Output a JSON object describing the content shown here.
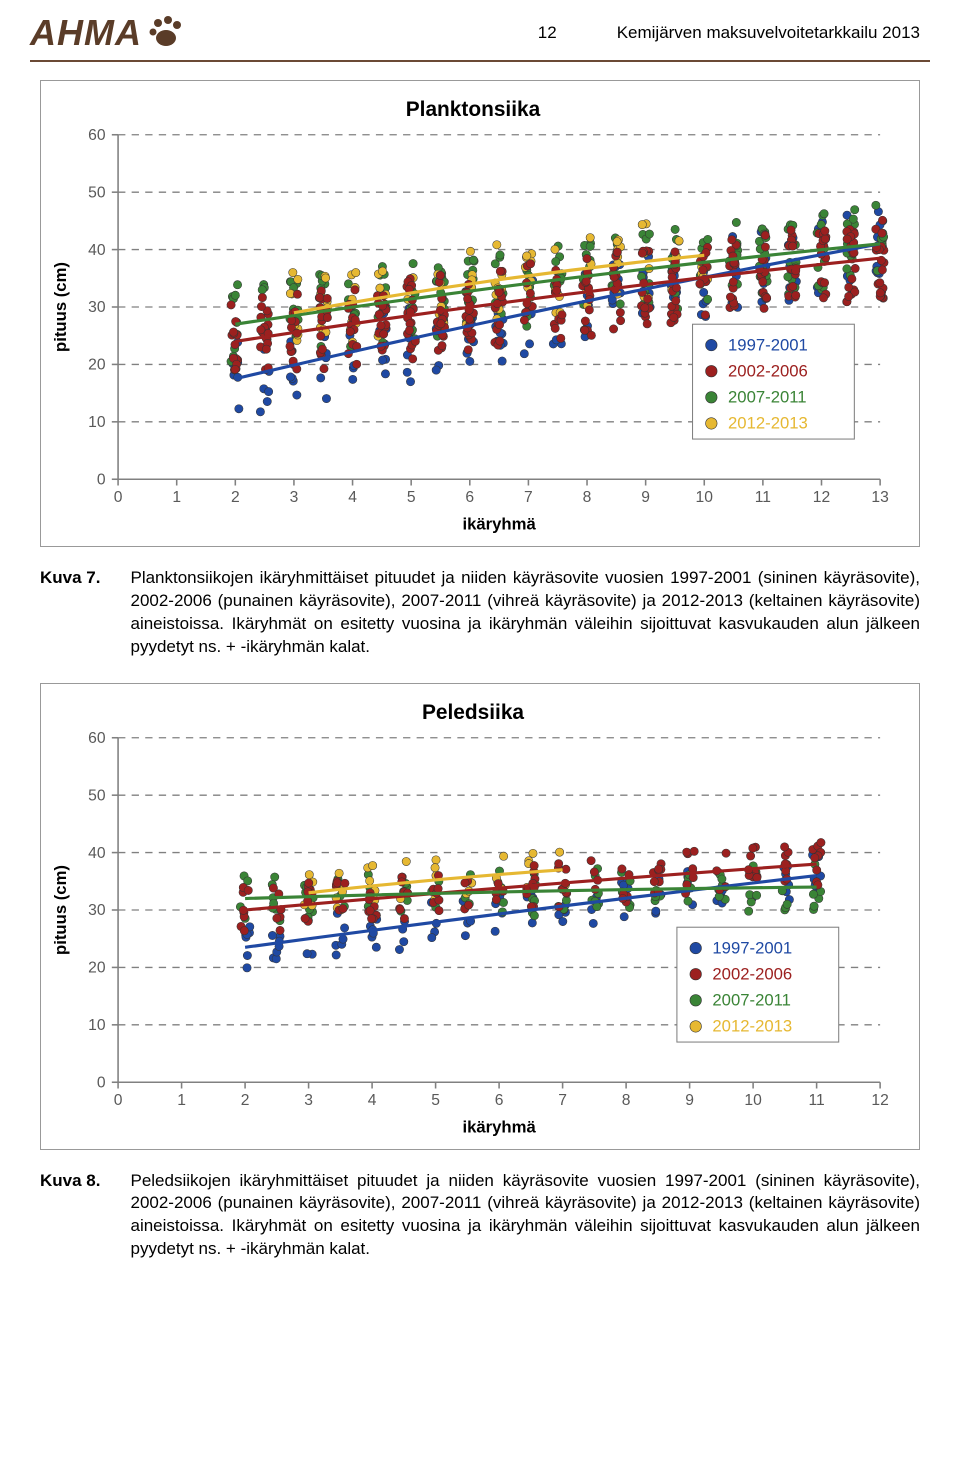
{
  "header": {
    "logo_text": "AHMA",
    "page_num": "12",
    "doc_title": "Kemijärven maksuvelvoitetarkkailu 2013"
  },
  "series_colors": {
    "s1": "#1f49a3",
    "s2": "#9c201f",
    "s3": "#3a8436",
    "s4": "#e6b832"
  },
  "legend": {
    "items": [
      {
        "label": "1997-2001",
        "color": "#1f49a3"
      },
      {
        "label": "2002-2006",
        "color": "#9c201f"
      },
      {
        "label": "2007-2011",
        "color": "#3a8436"
      },
      {
        "label": "2012-2013",
        "color": "#e6b832"
      }
    ]
  },
  "chart1": {
    "title": "Planktonsiika",
    "xlabel": "ikäryhmä",
    "ylabel": "pituus (cm)",
    "xlim": [
      0,
      13
    ],
    "ylim": [
      0,
      60
    ],
    "xticks": [
      0,
      1,
      2,
      3,
      4,
      5,
      6,
      7,
      8,
      9,
      10,
      11,
      12,
      13
    ],
    "yticks": [
      0,
      10,
      20,
      30,
      40,
      50,
      60
    ],
    "trend": {
      "s1": [
        [
          2,
          17.5
        ],
        [
          13,
          41
        ]
      ],
      "s2": [
        [
          2,
          24
        ],
        [
          13,
          38.5
        ]
      ],
      "s3": [
        [
          2,
          27
        ],
        [
          13,
          41
        ]
      ],
      "s4": [
        [
          3,
          29
        ],
        [
          10,
          39
        ]
      ]
    }
  },
  "chart2": {
    "title": "Peledsiika",
    "xlabel": "ikäryhmä",
    "ylabel": "pituus (cm)",
    "xlim": [
      0,
      12
    ],
    "ylim": [
      0,
      60
    ],
    "xticks": [
      0,
      1,
      2,
      3,
      4,
      5,
      6,
      7,
      8,
      9,
      10,
      11,
      12
    ],
    "yticks": [
      0,
      10,
      20,
      30,
      40,
      50,
      60
    ],
    "trend": {
      "s1": [
        [
          2,
          23.5
        ],
        [
          11,
          36
        ]
      ],
      "s2": [
        [
          2,
          30
        ],
        [
          11,
          38
        ]
      ],
      "s3": [
        [
          2,
          32
        ],
        [
          11,
          34
        ]
      ],
      "s4": [
        [
          3,
          33
        ],
        [
          7,
          37
        ]
      ]
    }
  },
  "caption1": {
    "label": "Kuva 7.",
    "text": "Planktonsiikojen ikäryhmittäiset pituudet ja niiden käyräsovite vuosien 1997-2001 (sininen käyräsovite), 2002-2006 (punainen käyräsovite), 2007-2011 (vihreä käyräsovite) ja 2012-2013 (keltainen käyräsovite) aineistoissa. Ikäryhmät on esitetty vuosina ja ikäryhmän väleihin sijoittuvat kasvukauden alun jälkeen pyydetyt ns. + -ikäryhmän kalat."
  },
  "caption2": {
    "label": "Kuva 8.",
    "text": "Peledsiikojen ikäryhmittäiset pituudet ja niiden käyräsovite vuosien 1997-2001 (sininen käyräsovite), 2002-2006 (punainen käyräsovite), 2007-2011 (vihreä käyräsovite) ja 2012-2013 (keltainen käyräsovite) aineistoissa. Ikäryhmät on esitetty vuosina ja ikäryhmän väleihin sijoittuvat kasvukauden alun jälkeen pyydetyt ns. + -ikäryhmän kalat."
  }
}
